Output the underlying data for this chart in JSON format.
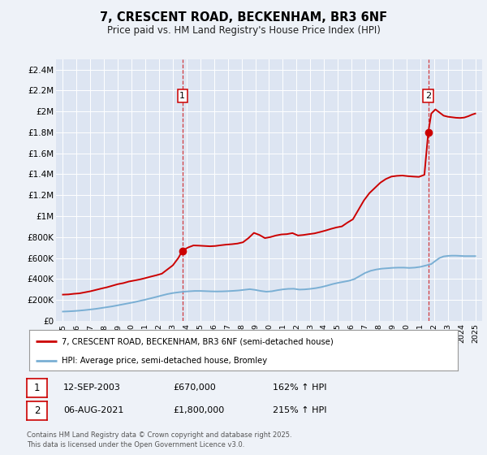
{
  "title": "7, CRESCENT ROAD, BECKENHAM, BR3 6NF",
  "subtitle": "Price paid vs. HM Land Registry's House Price Index (HPI)",
  "background_color": "#eef2f8",
  "plot_bg_color": "#dde5f2",
  "grid_color": "#ffffff",
  "red_line_color": "#cc0000",
  "blue_line_color": "#7aafd4",
  "marker1_date_num": 2003.7,
  "marker2_date_num": 2021.58,
  "marker1_value": 670000,
  "marker2_value": 1800000,
  "legend_line1": "7, CRESCENT ROAD, BECKENHAM, BR3 6NF (semi-detached house)",
  "legend_line2": "HPI: Average price, semi-detached house, Bromley",
  "table_row1": [
    "1",
    "12-SEP-2003",
    "£670,000",
    "162% ↑ HPI"
  ],
  "table_row2": [
    "2",
    "06-AUG-2021",
    "£1,800,000",
    "215% ↑ HPI"
  ],
  "copyright": "Contains HM Land Registry data © Crown copyright and database right 2025.\nThis data is licensed under the Open Government Licence v3.0.",
  "ylim_max": 2500000,
  "xlim_start": 1994.5,
  "xlim_end": 2025.5,
  "yticks": [
    0,
    200000,
    400000,
    600000,
    800000,
    1000000,
    1200000,
    1400000,
    1600000,
    1800000,
    2000000,
    2200000,
    2400000
  ],
  "xticks": [
    1995,
    1996,
    1997,
    1998,
    1999,
    2000,
    2001,
    2002,
    2003,
    2004,
    2005,
    2006,
    2007,
    2008,
    2009,
    2010,
    2011,
    2012,
    2013,
    2014,
    2015,
    2016,
    2017,
    2018,
    2019,
    2020,
    2021,
    2022,
    2023,
    2024,
    2025
  ],
  "red_years": [
    1995.0,
    1995.4,
    1995.8,
    1996.2,
    1996.6,
    1997.0,
    1997.4,
    1997.8,
    1998.2,
    1998.6,
    1999.0,
    1999.4,
    1999.8,
    2000.2,
    2000.6,
    2001.0,
    2001.4,
    2001.8,
    2002.2,
    2002.6,
    2003.0,
    2003.4,
    2003.7,
    2004.1,
    2004.5,
    2004.9,
    2005.3,
    2005.7,
    2006.1,
    2006.5,
    2006.9,
    2007.3,
    2007.7,
    2008.1,
    2008.5,
    2008.9,
    2009.3,
    2009.7,
    2010.1,
    2010.5,
    2010.9,
    2011.3,
    2011.7,
    2012.1,
    2012.5,
    2012.9,
    2013.3,
    2013.7,
    2014.1,
    2014.5,
    2014.9,
    2015.3,
    2015.7,
    2016.1,
    2016.5,
    2016.9,
    2017.3,
    2017.7,
    2018.1,
    2018.5,
    2018.9,
    2019.3,
    2019.7,
    2020.1,
    2020.5,
    2020.9,
    2021.3,
    2021.58,
    2021.8,
    2022.1,
    2022.4,
    2022.7,
    2023.0,
    2023.3,
    2023.6,
    2023.9,
    2024.2,
    2024.5,
    2024.8,
    2025.0
  ],
  "red_values": [
    250000,
    252000,
    258000,
    262000,
    272000,
    282000,
    295000,
    308000,
    320000,
    335000,
    350000,
    360000,
    375000,
    385000,
    395000,
    408000,
    422000,
    435000,
    450000,
    490000,
    530000,
    600000,
    670000,
    700000,
    720000,
    718000,
    715000,
    712000,
    715000,
    722000,
    728000,
    732000,
    738000,
    750000,
    790000,
    840000,
    820000,
    790000,
    800000,
    815000,
    825000,
    828000,
    838000,
    815000,
    820000,
    828000,
    835000,
    848000,
    862000,
    878000,
    892000,
    902000,
    938000,
    970000,
    1060000,
    1150000,
    1220000,
    1270000,
    1320000,
    1355000,
    1378000,
    1385000,
    1388000,
    1382000,
    1378000,
    1375000,
    1395000,
    1800000,
    1980000,
    2020000,
    1990000,
    1960000,
    1950000,
    1945000,
    1940000,
    1938000,
    1942000,
    1955000,
    1972000,
    1980000
  ],
  "blue_years": [
    1995.0,
    1995.4,
    1995.8,
    1996.2,
    1996.6,
    1997.0,
    1997.4,
    1997.8,
    1998.2,
    1998.6,
    1999.0,
    1999.4,
    1999.8,
    2000.2,
    2000.6,
    2001.0,
    2001.4,
    2001.8,
    2002.2,
    2002.6,
    2003.0,
    2003.4,
    2003.8,
    2004.2,
    2004.6,
    2005.0,
    2005.4,
    2005.8,
    2006.2,
    2006.6,
    2007.0,
    2007.4,
    2007.8,
    2008.2,
    2008.6,
    2009.0,
    2009.4,
    2009.8,
    2010.2,
    2010.6,
    2011.0,
    2011.4,
    2011.8,
    2012.2,
    2012.6,
    2013.0,
    2013.4,
    2013.8,
    2014.2,
    2014.6,
    2015.0,
    2015.4,
    2015.8,
    2016.2,
    2016.6,
    2017.0,
    2017.4,
    2017.8,
    2018.2,
    2018.6,
    2019.0,
    2019.4,
    2019.8,
    2020.2,
    2020.6,
    2021.0,
    2021.4,
    2021.8,
    2022.1,
    2022.4,
    2022.7,
    2023.0,
    2023.3,
    2023.6,
    2023.9,
    2024.2,
    2024.5,
    2024.8,
    2025.0
  ],
  "blue_values": [
    88000,
    90000,
    93000,
    97000,
    102000,
    108000,
    114000,
    122000,
    130000,
    138000,
    148000,
    158000,
    168000,
    178000,
    190000,
    202000,
    215000,
    228000,
    242000,
    255000,
    265000,
    272000,
    278000,
    282000,
    285000,
    285000,
    283000,
    281000,
    280000,
    281000,
    283000,
    286000,
    290000,
    296000,
    302000,
    295000,
    285000,
    278000,
    282000,
    292000,
    300000,
    305000,
    306000,
    298000,
    300000,
    305000,
    312000,
    322000,
    335000,
    350000,
    362000,
    372000,
    382000,
    398000,
    428000,
    458000,
    478000,
    490000,
    498000,
    502000,
    506000,
    508000,
    508000,
    505000,
    508000,
    515000,
    528000,
    542000,
    572000,
    600000,
    615000,
    620000,
    622000,
    622000,
    620000,
    618000,
    618000,
    618000,
    618000
  ]
}
